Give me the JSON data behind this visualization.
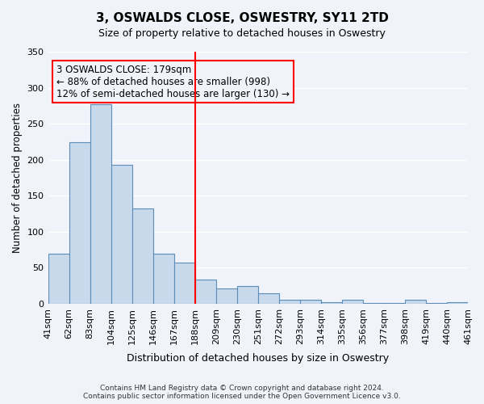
{
  "title": "3, OSWALDS CLOSE, OSWESTRY, SY11 2TD",
  "subtitle": "Size of property relative to detached houses in Oswestry",
  "xlabel": "Distribution of detached houses by size in Oswestry",
  "ylabel": "Number of detached properties",
  "categories": [
    "41sqm",
    "62sqm",
    "83sqm",
    "104sqm",
    "125sqm",
    "146sqm",
    "167sqm",
    "188sqm",
    "209sqm",
    "230sqm",
    "251sqm",
    "272sqm",
    "293sqm",
    "314sqm",
    "335sqm",
    "356sqm",
    "377sqm",
    "398sqm",
    "419sqm",
    "440sqm",
    "461sqm"
  ],
  "values": [
    69,
    224,
    277,
    193,
    132,
    70,
    57,
    33,
    21,
    25,
    14,
    5,
    6,
    2,
    5,
    1,
    1,
    6,
    1,
    2
  ],
  "bar_color": "#c9d9ec",
  "bar_edge_color": "#5b8db8",
  "background_color": "#f0f4fa",
  "grid_color": "#ffffff",
  "property_size": 179,
  "marker_bar_index": 7,
  "annotation_line1": "3 OSWALDS CLOSE: 179sqm",
  "annotation_line2": "← 88% of detached houses are smaller (998)",
  "annotation_line3": "12% of semi-detached houses are larger (130) →",
  "footer_line1": "Contains HM Land Registry data © Crown copyright and database right 2024.",
  "footer_line2": "Contains public sector information licensed under the Open Government Licence v3.0.",
  "ylim": [
    0,
    350
  ],
  "yticks": [
    0,
    50,
    100,
    150,
    200,
    250,
    300,
    350
  ]
}
